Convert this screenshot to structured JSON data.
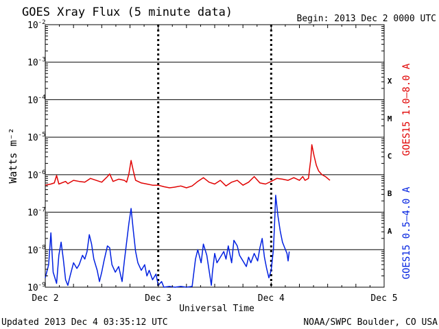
{
  "header": {
    "title": "GOES Xray Flux (5 minute data)",
    "begin": "Begin:  2013 Dec 2 0000 UTC"
  },
  "footer": {
    "updated": "Updated 2013 Dec  4 03:35:12 UTC",
    "credit": "NOAA/SWPC Boulder, CO USA"
  },
  "chart_data": {
    "type": "line",
    "title": "GOES Xray Flux (5 minute data)",
    "xlabel": "Universal Time",
    "ylabel": "Watts m⁻²",
    "yscale": "log",
    "ylim_exp": [
      -9,
      -2
    ],
    "xlim_days": [
      0,
      3
    ],
    "x_ticks": [
      "Dec 2",
      "Dec 3",
      "Dec 4",
      "Dec 5"
    ],
    "y_ticks": [
      {
        "base": "10",
        "exp": "-9"
      },
      {
        "base": "10",
        "exp": "-8"
      },
      {
        "base": "10",
        "exp": "-7"
      },
      {
        "base": "10",
        "exp": "-6"
      },
      {
        "base": "10",
        "exp": "-5"
      },
      {
        "base": "10",
        "exp": "-4"
      },
      {
        "base": "10",
        "exp": "-3"
      },
      {
        "base": "10",
        "exp": "-2"
      }
    ],
    "flare_classes": [
      {
        "label": "A",
        "exp": -8
      },
      {
        "label": "B",
        "exp": -7
      },
      {
        "label": "C",
        "exp": -6
      },
      {
        "label": "M",
        "exp": -5
      },
      {
        "label": "X",
        "exp": -4
      }
    ],
    "series": [
      {
        "name": "GOES15 1.0–8.0 A",
        "color": "#e00000",
        "points": [
          [
            0.0,
            -6.28
          ],
          [
            0.05,
            -6.25
          ],
          [
            0.08,
            -6.22
          ],
          [
            0.1,
            -6.02
          ],
          [
            0.12,
            -6.25
          ],
          [
            0.18,
            -6.18
          ],
          [
            0.2,
            -6.24
          ],
          [
            0.25,
            -6.15
          ],
          [
            0.3,
            -6.18
          ],
          [
            0.35,
            -6.2
          ],
          [
            0.4,
            -6.1
          ],
          [
            0.45,
            -6.15
          ],
          [
            0.5,
            -6.2
          ],
          [
            0.55,
            -6.05
          ],
          [
            0.57,
            -5.98
          ],
          [
            0.6,
            -6.18
          ],
          [
            0.65,
            -6.12
          ],
          [
            0.7,
            -6.15
          ],
          [
            0.72,
            -6.2
          ],
          [
            0.74,
            -5.98
          ],
          [
            0.76,
            -5.62
          ],
          [
            0.78,
            -5.9
          ],
          [
            0.8,
            -6.15
          ],
          [
            0.85,
            -6.22
          ],
          [
            0.9,
            -6.25
          ],
          [
            0.95,
            -6.28
          ],
          [
            1.0,
            -6.28
          ],
          [
            1.05,
            -6.32
          ],
          [
            1.1,
            -6.35
          ],
          [
            1.15,
            -6.33
          ],
          [
            1.2,
            -6.3
          ],
          [
            1.25,
            -6.35
          ],
          [
            1.3,
            -6.3
          ],
          [
            1.35,
            -6.18
          ],
          [
            1.4,
            -6.08
          ],
          [
            1.45,
            -6.2
          ],
          [
            1.5,
            -6.25
          ],
          [
            1.55,
            -6.15
          ],
          [
            1.6,
            -6.3
          ],
          [
            1.65,
            -6.2
          ],
          [
            1.7,
            -6.15
          ],
          [
            1.75,
            -6.28
          ],
          [
            1.8,
            -6.2
          ],
          [
            1.85,
            -6.05
          ],
          [
            1.9,
            -6.22
          ],
          [
            1.95,
            -6.25
          ],
          [
            2.0,
            -6.18
          ],
          [
            2.05,
            -6.1
          ],
          [
            2.1,
            -6.12
          ],
          [
            2.15,
            -6.15
          ],
          [
            2.2,
            -6.08
          ],
          [
            2.25,
            -6.15
          ],
          [
            2.28,
            -6.05
          ],
          [
            2.3,
            -6.15
          ],
          [
            2.33,
            -6.1
          ],
          [
            2.34,
            -5.85
          ],
          [
            2.35,
            -5.6
          ],
          [
            2.36,
            -5.2
          ],
          [
            2.38,
            -5.5
          ],
          [
            2.4,
            -5.75
          ],
          [
            2.42,
            -5.9
          ],
          [
            2.45,
            -6.0
          ],
          [
            2.48,
            -6.05
          ],
          [
            2.5,
            -6.1
          ],
          [
            2.52,
            -6.15
          ]
        ]
      },
      {
        "name": "GOES15 0.5–4.0 A",
        "color": "#0020e0",
        "points": [
          [
            0.0,
            -8.75
          ],
          [
            0.03,
            -8.4
          ],
          [
            0.05,
            -7.55
          ],
          [
            0.07,
            -8.6
          ],
          [
            0.1,
            -8.9
          ],
          [
            0.12,
            -8.15
          ],
          [
            0.14,
            -7.8
          ],
          [
            0.16,
            -8.25
          ],
          [
            0.18,
            -8.8
          ],
          [
            0.2,
            -8.95
          ],
          [
            0.22,
            -8.7
          ],
          [
            0.25,
            -8.35
          ],
          [
            0.28,
            -8.5
          ],
          [
            0.3,
            -8.4
          ],
          [
            0.33,
            -8.15
          ],
          [
            0.35,
            -8.25
          ],
          [
            0.37,
            -8.05
          ],
          [
            0.39,
            -7.6
          ],
          [
            0.41,
            -7.85
          ],
          [
            0.43,
            -8.25
          ],
          [
            0.46,
            -8.55
          ],
          [
            0.48,
            -8.85
          ],
          [
            0.5,
            -8.6
          ],
          [
            0.52,
            -8.3
          ],
          [
            0.55,
            -7.9
          ],
          [
            0.57,
            -7.95
          ],
          [
            0.59,
            -8.4
          ],
          [
            0.62,
            -8.6
          ],
          [
            0.65,
            -8.45
          ],
          [
            0.68,
            -8.85
          ],
          [
            0.7,
            -8.3
          ],
          [
            0.72,
            -7.8
          ],
          [
            0.74,
            -7.3
          ],
          [
            0.76,
            -6.9
          ],
          [
            0.78,
            -7.5
          ],
          [
            0.8,
            -8.05
          ],
          [
            0.82,
            -8.35
          ],
          [
            0.85,
            -8.55
          ],
          [
            0.88,
            -8.4
          ],
          [
            0.9,
            -8.7
          ],
          [
            0.92,
            -8.55
          ],
          [
            0.95,
            -8.8
          ],
          [
            0.98,
            -8.65
          ],
          [
            1.0,
            -8.95
          ],
          [
            1.03,
            -8.85
          ],
          [
            1.05,
            -9.0
          ],
          [
            1.1,
            -8.98
          ],
          [
            1.15,
            -9.0
          ],
          [
            1.2,
            -8.98
          ],
          [
            1.25,
            -9.0
          ],
          [
            1.3,
            -8.98
          ],
          [
            1.33,
            -8.25
          ],
          [
            1.35,
            -8.0
          ],
          [
            1.38,
            -8.35
          ],
          [
            1.4,
            -7.85
          ],
          [
            1.43,
            -8.15
          ],
          [
            1.45,
            -8.55
          ],
          [
            1.47,
            -8.95
          ],
          [
            1.48,
            -8.6
          ],
          [
            1.5,
            -8.1
          ],
          [
            1.52,
            -8.35
          ],
          [
            1.55,
            -8.2
          ],
          [
            1.58,
            -8.05
          ],
          [
            1.6,
            -8.25
          ],
          [
            1.62,
            -7.9
          ],
          [
            1.65,
            -8.35
          ],
          [
            1.67,
            -7.75
          ],
          [
            1.7,
            -7.9
          ],
          [
            1.72,
            -8.15
          ],
          [
            1.75,
            -8.3
          ],
          [
            1.78,
            -8.45
          ],
          [
            1.8,
            -8.2
          ],
          [
            1.82,
            -8.35
          ],
          [
            1.85,
            -8.1
          ],
          [
            1.88,
            -8.3
          ],
          [
            1.9,
            -7.95
          ],
          [
            1.92,
            -7.7
          ],
          [
            1.94,
            -8.2
          ],
          [
            1.96,
            -8.5
          ],
          [
            1.98,
            -8.75
          ],
          [
            2.0,
            -8.55
          ],
          [
            2.02,
            -8.0
          ],
          [
            2.03,
            -7.3
          ],
          [
            2.04,
            -6.55
          ],
          [
            2.06,
            -7.1
          ],
          [
            2.08,
            -7.5
          ],
          [
            2.1,
            -7.8
          ],
          [
            2.12,
            -7.95
          ],
          [
            2.14,
            -8.1
          ],
          [
            2.15,
            -8.3
          ],
          [
            2.16,
            -8.05
          ]
        ]
      }
    ]
  }
}
